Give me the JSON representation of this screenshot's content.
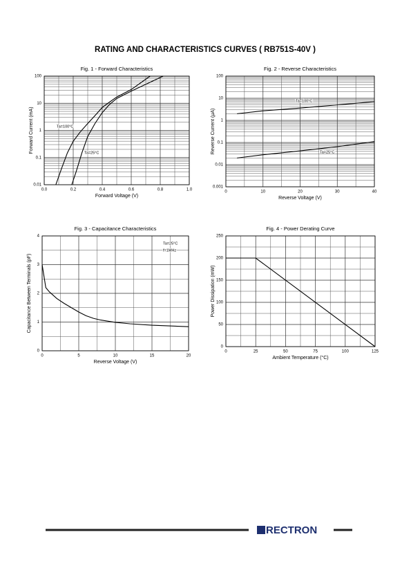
{
  "title": "RATING AND CHARACTERISTICS CURVES ( RB751S-40V )",
  "logo": "RECTRON",
  "chart_data": [
    {
      "type": "line",
      "title": "Fig. 1 - Forward Characteristics",
      "xlabel": "Forward Voltage (V)",
      "ylabel": "Forward Current (mA)",
      "xlim": [
        0,
        1
      ],
      "ylim": [
        0.01,
        100
      ],
      "ylog": true,
      "grid": true,
      "xticks": [
        {
          "value": 0,
          "label": "0.0"
        },
        {
          "value": 0.2,
          "label": "0.2"
        },
        {
          "value": 0.4,
          "label": "0.4"
        },
        {
          "value": 0.6,
          "label": "0.6"
        },
        {
          "value": 0.8,
          "label": "0.8"
        },
        {
          "value": 1,
          "label": "1.0"
        }
      ],
      "yticks": [
        0.01,
        0.1,
        1,
        10,
        100
      ],
      "annotations": [
        "Ta=100°C",
        "Ta=25°C"
      ],
      "series": [
        {
          "color": "#000000",
          "x": [
            0.08,
            0.12,
            0.16,
            0.2,
            0.25,
            0.3,
            0.35,
            0.4,
            0.45,
            0.5,
            0.6,
            0.73
          ],
          "values": [
            0.01,
            0.04,
            0.15,
            0.4,
            0.9,
            1.8,
            3.5,
            7,
            11,
            17,
            32,
            100
          ]
        },
        {
          "color": "#000000",
          "x": [
            0.19,
            0.22,
            0.26,
            0.3,
            0.35,
            0.4,
            0.45,
            0.5,
            0.6,
            0.7,
            0.82
          ],
          "values": [
            0.01,
            0.03,
            0.15,
            0.6,
            1.8,
            4.5,
            9,
            15,
            28,
            50,
            100
          ]
        }
      ]
    },
    {
      "type": "line",
      "title": "Fig. 2 - Reverse Characteristics",
      "xlabel": "Reverse Voltage (V)",
      "ylabel": "Reverse Current (µA)",
      "xlim": [
        0,
        40
      ],
      "ylim": [
        0.001,
        100
      ],
      "ylog": true,
      "grid": true,
      "xticks": [
        0,
        10,
        20,
        30,
        40
      ],
      "yticks": [
        0.001,
        0.01,
        0.1,
        1,
        10,
        100
      ],
      "annotations": [
        "Ta=100°C",
        "Ta=25°C"
      ],
      "series": [
        {
          "color": "#000000",
          "x": [
            3,
            10,
            20,
            30,
            40
          ],
          "values": [
            2,
            2.7,
            3.6,
            5,
            7
          ]
        },
        {
          "color": "#000000",
          "x": [
            3,
            10,
            20,
            30,
            40
          ],
          "values": [
            0.02,
            0.028,
            0.042,
            0.065,
            0.11
          ]
        }
      ]
    },
    {
      "type": "line",
      "title": "Fig. 3 - Capacitance Characteristics",
      "xlabel": "Reverse Voltage (V)",
      "ylabel": "Capacitance Between Terminals (pF)",
      "xlim": [
        0,
        20
      ],
      "ylim": [
        0,
        4
      ],
      "ylog": false,
      "grid": true,
      "xticks": [
        0,
        5,
        10,
        15,
        20
      ],
      "yticks": [
        0,
        1,
        2,
        3,
        4
      ],
      "annotations": [
        "Ta=25°C",
        "f=1MHz"
      ],
      "series": [
        {
          "color": "#000000",
          "x": [
            0,
            0.5,
            1,
            2,
            3,
            4,
            5,
            6,
            7,
            8,
            10,
            12,
            15,
            20
          ],
          "values": [
            3,
            2.2,
            2.05,
            1.82,
            1.65,
            1.5,
            1.35,
            1.22,
            1.13,
            1.07,
            0.99,
            0.94,
            0.89,
            0.84
          ]
        }
      ]
    },
    {
      "type": "line",
      "title": "Fig. 4 - Power Derating Curve",
      "xlabel": "Ambient Temperature (°C)",
      "ylabel": "Power Dissipation (mW)",
      "xlim": [
        0,
        125
      ],
      "ylim": [
        0,
        250
      ],
      "ylog": false,
      "grid": true,
      "xticks": [
        0,
        25,
        50,
        75,
        100,
        125
      ],
      "yticks": [
        0,
        50,
        100,
        150,
        200,
        250
      ],
      "annotations": [],
      "series": [
        {
          "color": "#000000",
          "x": [
            0,
            25,
            125
          ],
          "values": [
            200,
            200,
            0
          ]
        }
      ]
    }
  ]
}
